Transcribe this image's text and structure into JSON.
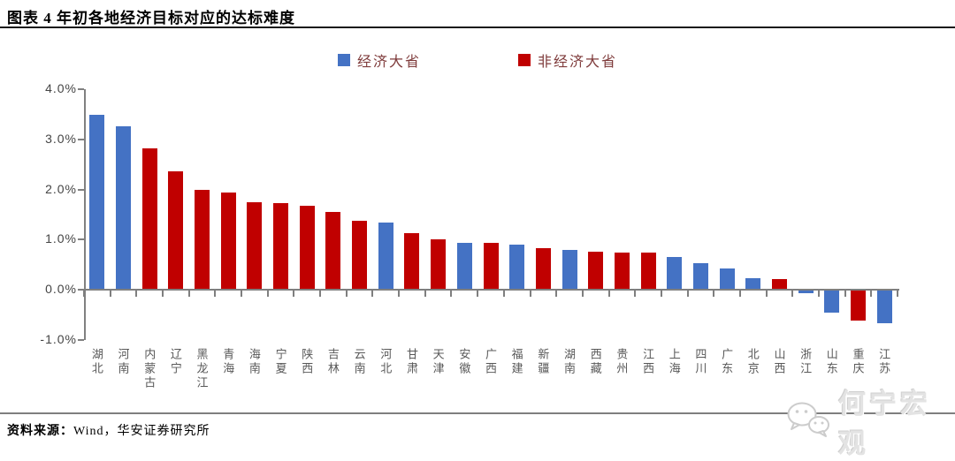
{
  "header": {
    "title": "图表 4 年初各地经济目标对应的达标难度"
  },
  "legend": {
    "major": "经济大省",
    "non_major": "非经济大省"
  },
  "watermark": {
    "text": "何宁宏观",
    "icon": "wechat-icon"
  },
  "footer": {
    "source_label": "资料来源：",
    "source_text": "Wind，华安证券研究所"
  },
  "chart_data": {
    "type": "bar",
    "title": "年初各地经济目标对应的达标难度",
    "xlabel": "",
    "ylabel": "",
    "ylim": [
      -1.0,
      4.0
    ],
    "yticks": [
      4.0,
      3.0,
      2.0,
      1.0,
      0.0,
      -1.0
    ],
    "ytick_suffix": "%",
    "grid": false,
    "legend_position": "top-center",
    "colors": {
      "major": "#4472C4",
      "non_major": "#C00000"
    },
    "series": [
      {
        "name": "经济大省",
        "color": "#4472C4"
      },
      {
        "name": "非经济大省",
        "color": "#C00000"
      }
    ],
    "categories": [
      "湖北",
      "河南",
      "内蒙古",
      "辽宁",
      "黑龙江",
      "青海",
      "海南",
      "宁夏",
      "陕西",
      "吉林",
      "云南",
      "河北",
      "甘肃",
      "天津",
      "安徽",
      "广西",
      "福建",
      "新疆",
      "湖南",
      "西藏",
      "贵州",
      "江西",
      "上海",
      "四川",
      "广东",
      "北京",
      "山西",
      "浙江",
      "山东",
      "重庆",
      "江苏"
    ],
    "values": [
      3.47,
      3.25,
      2.8,
      2.34,
      1.98,
      1.92,
      1.73,
      1.71,
      1.66,
      1.53,
      1.36,
      1.32,
      1.11,
      0.99,
      0.92,
      0.92,
      0.88,
      0.81,
      0.77,
      0.74,
      0.73,
      0.72,
      0.64,
      0.51,
      0.4,
      0.22,
      0.2,
      -0.05,
      -0.44,
      -0.6,
      -0.65
    ],
    "groups": [
      "major",
      "major",
      "non_major",
      "non_major",
      "non_major",
      "non_major",
      "non_major",
      "non_major",
      "non_major",
      "non_major",
      "non_major",
      "major",
      "non_major",
      "non_major",
      "major",
      "non_major",
      "major",
      "non_major",
      "major",
      "non_major",
      "non_major",
      "non_major",
      "major",
      "major",
      "major",
      "major",
      "non_major",
      "major",
      "major",
      "non_major",
      "major"
    ]
  }
}
